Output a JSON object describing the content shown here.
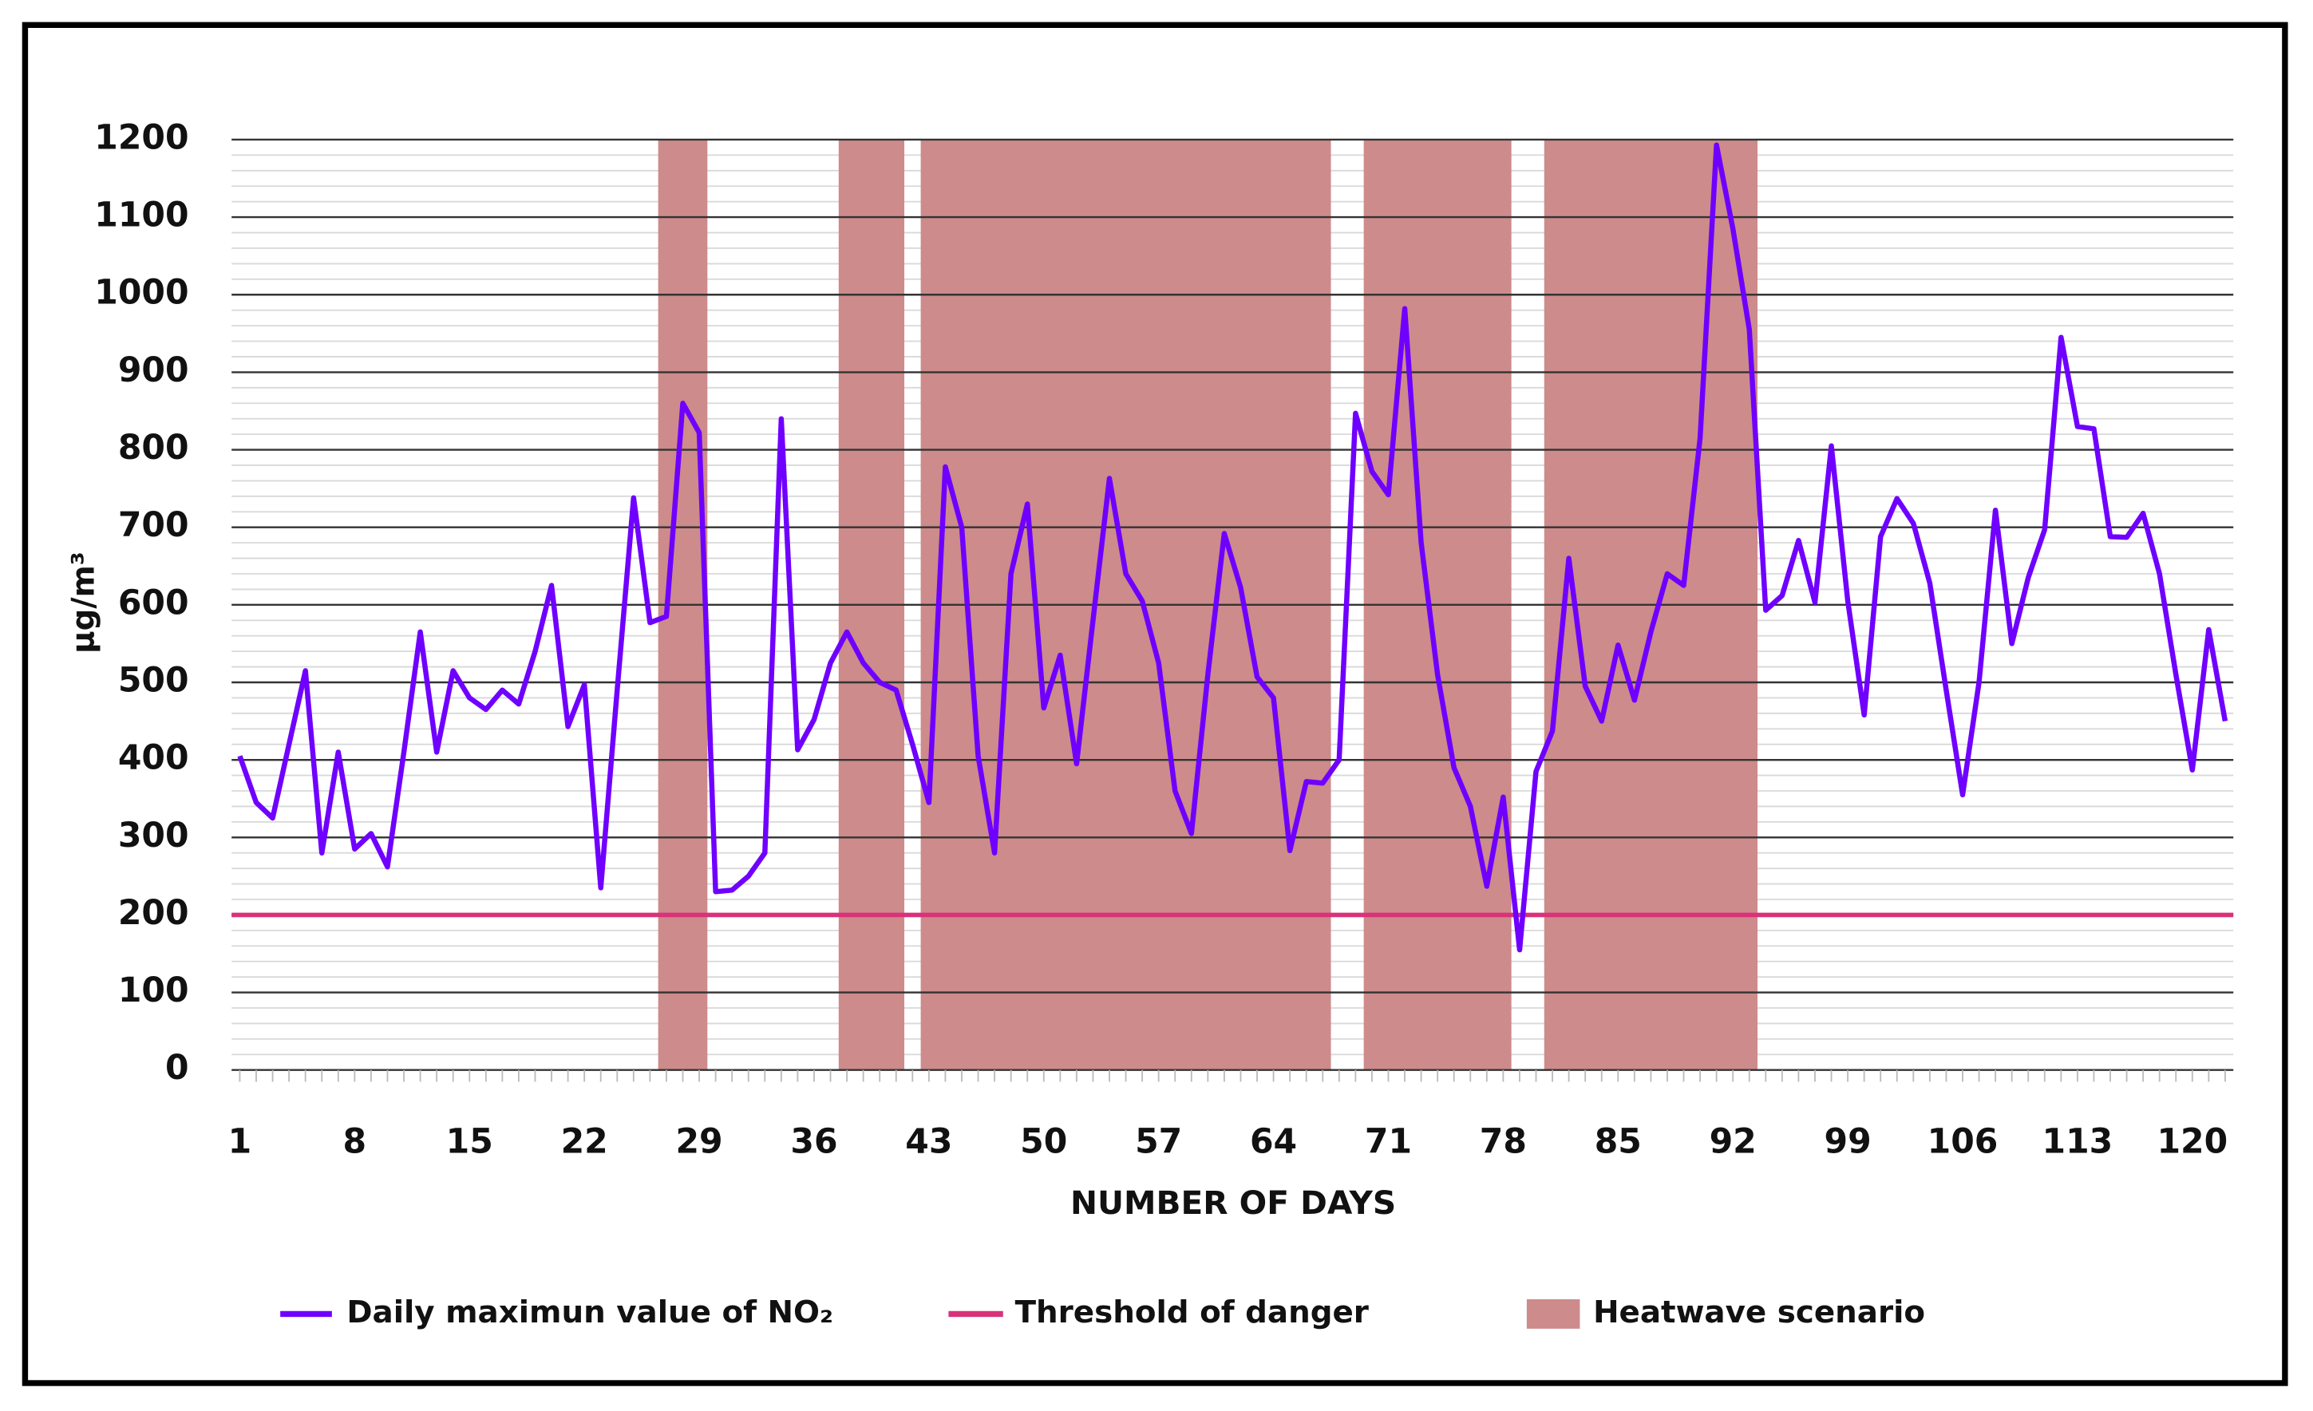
{
  "chart_data": {
    "type": "line",
    "x_label": "NUMBER OF DAYS",
    "y_label": "µg/m³",
    "x": [
      1,
      2,
      3,
      4,
      5,
      6,
      7,
      8,
      9,
      10,
      11,
      12,
      13,
      14,
      15,
      16,
      17,
      18,
      19,
      20,
      21,
      22,
      23,
      24,
      25,
      26,
      27,
      28,
      29,
      30,
      31,
      32,
      33,
      34,
      35,
      36,
      37,
      38,
      39,
      40,
      41,
      42,
      43,
      44,
      45,
      46,
      47,
      48,
      49,
      50,
      51,
      52,
      53,
      54,
      55,
      56,
      57,
      58,
      59,
      60,
      61,
      62,
      63,
      64,
      65,
      66,
      67,
      68,
      69,
      70,
      71,
      72,
      73,
      74,
      75,
      76,
      77,
      78,
      79,
      80,
      81,
      82,
      83,
      84,
      85,
      86,
      87,
      88,
      89,
      90,
      91,
      92,
      93,
      94,
      95,
      96,
      97,
      98,
      99,
      100,
      101,
      102,
      103,
      104,
      105,
      106,
      107,
      108,
      109,
      110,
      111,
      112,
      113,
      114,
      115,
      116,
      117,
      118,
      119,
      120,
      121,
      122
    ],
    "series": [
      {
        "name": "Daily maximun value of NO₂",
        "color": "#6f00ff",
        "values": [
          405,
          345,
          325,
          420,
          515,
          280,
          410,
          285,
          305,
          262,
          410,
          565,
          410,
          515,
          480,
          465,
          490,
          472,
          540,
          625,
          443,
          497,
          235,
          490,
          738,
          577,
          585,
          860,
          822,
          230,
          232,
          250,
          280,
          840,
          413,
          452,
          525,
          565,
          525,
          500,
          490,
          420,
          345,
          778,
          700,
          405,
          280,
          640,
          730,
          467,
          535,
          395,
          580,
          763,
          640,
          605,
          525,
          360,
          305,
          510,
          692,
          622,
          507,
          480,
          283,
          372,
          370,
          400,
          847,
          772,
          742,
          982,
          680,
          510,
          390,
          340,
          237,
          352,
          155,
          385,
          437,
          660,
          495,
          450,
          548,
          477,
          565,
          640,
          625,
          815,
          1193,
          1085,
          955,
          593,
          612,
          683,
          603,
          805,
          605,
          458,
          688,
          737,
          705,
          628,
          490,
          355,
          500,
          722,
          550,
          635,
          697,
          945,
          830,
          827,
          688,
          687,
          718,
          640,
          510,
          387,
          568,
          450
        ]
      }
    ],
    "threshold": {
      "name": "Threshold of danger",
      "color": "#d9327a",
      "value": 200
    },
    "heatwave": {
      "name": "Heatwave scenario",
      "color": "#cd8b8b",
      "periods": [
        {
          "start": 27,
          "end": 29
        },
        {
          "start": 38,
          "end": 41
        },
        {
          "start": 43,
          "end": 67
        },
        {
          "start": 70,
          "end": 78
        },
        {
          "start": 81,
          "end": 93
        }
      ]
    },
    "xlim": [
      0.5,
      122.5
    ],
    "xticks": [
      1,
      8,
      15,
      22,
      29,
      36,
      43,
      50,
      57,
      64,
      71,
      78,
      85,
      92,
      99,
      106,
      113,
      120
    ],
    "ylim": [
      0,
      1200
    ],
    "yticks": [
      0,
      100,
      200,
      300,
      400,
      500,
      600,
      700,
      800,
      900,
      1000,
      1100,
      1200
    ],
    "grid": true,
    "minor_grid": true,
    "legend": "bottom"
  }
}
